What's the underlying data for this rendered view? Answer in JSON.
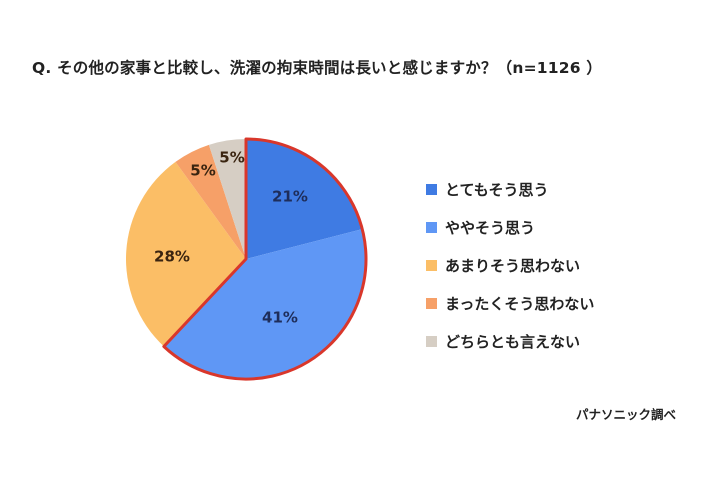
{
  "title": "Q. その他の家事と比較し、洗濯の拘束時間は長いと感じますか？（n=1126 ）",
  "source": "パナソニック調べ",
  "legend": [
    {
      "label": "とてもそう思う",
      "color": "#3f7be3"
    },
    {
      "label": "ややそう思う",
      "color": "#5f97f5"
    },
    {
      "label": "あまりそう思わない",
      "color": "#fbbe66"
    },
    {
      "label": "まったくそう思わない",
      "color": "#f6a068"
    },
    {
      "label": "どちらとも言えない",
      "color": "#d6cec4"
    }
  ],
  "highlight_color": "#d9372b",
  "chart_data": {
    "type": "pie",
    "title": "Q. その他の家事と比較し、洗濯の拘束時間は長いと感じますか？（n=1126 ）",
    "n": 1126,
    "categories": [
      "とてもそう思う",
      "ややそう思う",
      "あまりそう思わない",
      "まったくそう思わない",
      "どちらとも言えない"
    ],
    "values": [
      21,
      41,
      28,
      5,
      5
    ],
    "labels": [
      "21%",
      "41%",
      "28%",
      "5%",
      "5%"
    ],
    "colors": [
      "#3f7be3",
      "#5f97f5",
      "#fbbe66",
      "#f6a068",
      "#d6cec4"
    ],
    "start_angle": "12 o'clock, clockwise",
    "highlighted_group": [
      "とてもそう思う",
      "ややそう思う"
    ],
    "legend_position": "right",
    "source": "パナソニック調べ"
  }
}
